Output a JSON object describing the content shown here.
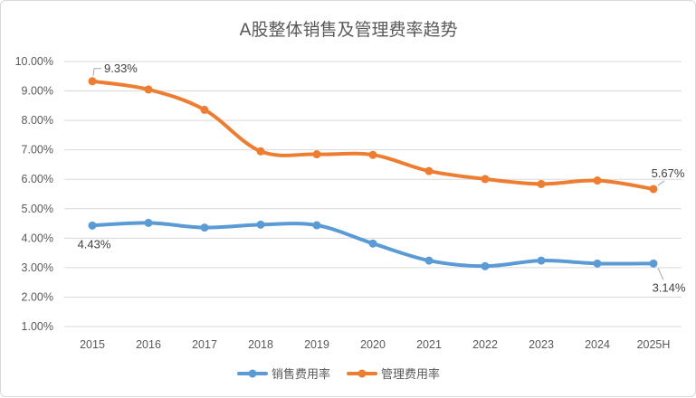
{
  "chart_data": {
    "type": "line",
    "title": "A股整体销售及管理费率趋势",
    "categories": [
      "2015",
      "2016",
      "2017",
      "2018",
      "2019",
      "2020",
      "2021",
      "2022",
      "2023",
      "2024",
      "2025H"
    ],
    "y_ticks": [
      "1.00%",
      "2.00%",
      "3.00%",
      "4.00%",
      "5.00%",
      "6.00%",
      "7.00%",
      "8.00%",
      "9.00%",
      "10.00%"
    ],
    "ylim": [
      1,
      10
    ],
    "grid": true,
    "legend_position": "bottom",
    "series": [
      {
        "name": "销售费用率",
        "color": "#5b9bd5",
        "values": [
          4.43,
          4.52,
          4.36,
          4.46,
          4.44,
          3.82,
          3.24,
          3.05,
          3.24,
          3.14,
          3.14
        ]
      },
      {
        "name": "管理费用率",
        "color": "#ed7d31",
        "values": [
          9.33,
          9.05,
          8.36,
          6.95,
          6.85,
          6.83,
          6.28,
          6.01,
          5.84,
          5.96,
          5.67
        ]
      }
    ],
    "data_labels": [
      {
        "series": 1,
        "index": 0,
        "text": "9.33%"
      },
      {
        "series": 1,
        "index": 10,
        "text": "5.67%"
      },
      {
        "series": 0,
        "index": 0,
        "text": "4.43%"
      },
      {
        "series": 0,
        "index": 10,
        "text": "3.14%"
      }
    ]
  }
}
